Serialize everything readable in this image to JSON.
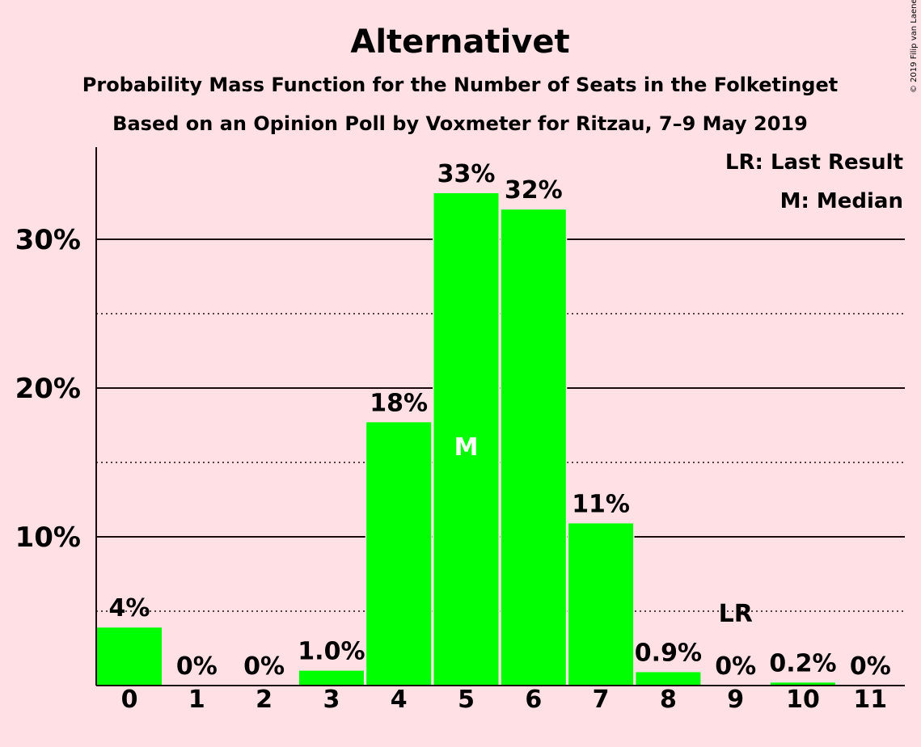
{
  "chart_data": {
    "type": "bar",
    "title": "Alternativet",
    "subtitle": "Probability Mass Function for the Number of Seats in the Folketinget",
    "subtitle2": "Based on an Opinion Poll by Voxmeter for Ritzau, 7–9 May 2019",
    "copyright": "© 2019 Filip van Laenen",
    "categories": [
      "0",
      "1",
      "2",
      "3",
      "4",
      "5",
      "6",
      "7",
      "8",
      "9",
      "10",
      "11"
    ],
    "values": [
      3.9,
      0,
      0,
      1.0,
      17.7,
      33.1,
      32.0,
      10.9,
      0.9,
      0,
      0.2,
      0
    ],
    "value_labels": [
      "4%",
      "0%",
      "0%",
      "1.0%",
      "18%",
      "33%",
      "32%",
      "11%",
      "0.9%",
      "0%",
      "0.2%",
      "0%"
    ],
    "ylim": [
      0,
      36
    ],
    "yticks_major": [
      10,
      20,
      30
    ],
    "ytick_labels": [
      "10%",
      "20%",
      "30%"
    ],
    "yticks_minor": [
      5,
      15,
      25
    ],
    "bar_color": "#00ff00",
    "median_index": 5,
    "median_marker": "M",
    "last_result_index": 9,
    "last_result_marker": "LR",
    "legend": [
      "LR: Last Result",
      "M: Median"
    ]
  }
}
